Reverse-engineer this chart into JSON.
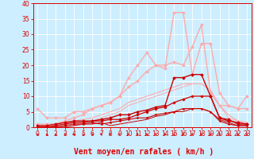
{
  "xlabel": "Vent moyen/en rafales ( km/h )",
  "bg_color": "#cceeff",
  "grid_color": "#ffffff",
  "axis_color": "#dd0000",
  "xlim": [
    -0.5,
    23.5
  ],
  "ylim": [
    0,
    40
  ],
  "yticks": [
    0,
    5,
    10,
    15,
    20,
    25,
    30,
    35,
    40
  ],
  "xticks": [
    0,
    1,
    2,
    3,
    4,
    5,
    6,
    7,
    8,
    9,
    10,
    11,
    12,
    13,
    14,
    15,
    16,
    17,
    18,
    19,
    20,
    21,
    22,
    23
  ],
  "lines": [
    {
      "x": [
        0,
        1,
        2,
        3,
        4,
        5,
        6,
        7,
        8,
        9,
        10,
        11,
        12,
        13,
        14,
        15,
        16,
        17,
        18,
        19,
        20,
        21,
        22,
        23
      ],
      "y": [
        6,
        3,
        3,
        3,
        5,
        5,
        6,
        7,
        8,
        10,
        16,
        20,
        24,
        20,
        19,
        37,
        37,
        17,
        27,
        27,
        11,
        7,
        6,
        10
      ],
      "color": "#ffaaaa",
      "lw": 1.0,
      "marker": "D",
      "ms": 2.0
    },
    {
      "x": [
        0,
        1,
        2,
        3,
        4,
        5,
        6,
        7,
        8,
        9,
        10,
        11,
        12,
        13,
        14,
        15,
        16,
        17,
        18,
        19,
        20,
        21,
        22,
        23
      ],
      "y": [
        1,
        1,
        1,
        2,
        3,
        4,
        6,
        7,
        8,
        10,
        13,
        15,
        18,
        20,
        20,
        21,
        20,
        26,
        33,
        11,
        7,
        7,
        6,
        6
      ],
      "color": "#ffaaaa",
      "lw": 1.0,
      "marker": "D",
      "ms": 2.0
    },
    {
      "x": [
        0,
        1,
        2,
        3,
        4,
        5,
        6,
        7,
        8,
        9,
        10,
        11,
        12,
        13,
        14,
        15,
        16,
        17,
        18,
        19,
        20,
        21,
        22,
        23
      ],
      "y": [
        0,
        0,
        0.5,
        1,
        2,
        2.5,
        3,
        4,
        5,
        6,
        8,
        9,
        10,
        11,
        12,
        13,
        14,
        14,
        14,
        12,
        7,
        4,
        2,
        1.5
      ],
      "color": "#ffaaaa",
      "lw": 0.8,
      "marker": null,
      "ms": 0
    },
    {
      "x": [
        0,
        1,
        2,
        3,
        4,
        5,
        6,
        7,
        8,
        9,
        10,
        11,
        12,
        13,
        14,
        15,
        16,
        17,
        18,
        19,
        20,
        21,
        22,
        23
      ],
      "y": [
        0,
        0,
        0,
        0.5,
        1,
        1.5,
        2,
        3,
        4,
        5,
        7,
        8,
        9,
        10,
        11,
        12,
        13,
        14,
        14,
        12,
        7,
        3,
        2,
        1.5
      ],
      "color": "#ffaaaa",
      "lw": 0.7,
      "marker": null,
      "ms": 0
    },
    {
      "x": [
        0,
        1,
        2,
        3,
        4,
        5,
        6,
        7,
        8,
        9,
        10,
        11,
        12,
        13,
        14,
        15,
        16,
        17,
        18,
        19,
        20,
        21,
        22,
        23
      ],
      "y": [
        0.5,
        0.5,
        1,
        1.5,
        2,
        2,
        2,
        2.5,
        3,
        4,
        4,
        5,
        5.5,
        6.5,
        7,
        16,
        16,
        17,
        17,
        10,
        3,
        2,
        1.5,
        1
      ],
      "color": "#cc0000",
      "lw": 1.0,
      "marker": "D",
      "ms": 2.0
    },
    {
      "x": [
        0,
        1,
        2,
        3,
        4,
        5,
        6,
        7,
        8,
        9,
        10,
        11,
        12,
        13,
        14,
        15,
        16,
        17,
        18,
        19,
        20,
        21,
        22,
        23
      ],
      "y": [
        0,
        0,
        0.5,
        1,
        1.5,
        1.5,
        2,
        2,
        2.5,
        2.5,
        3,
        4,
        5,
        6,
        6.5,
        8,
        9,
        10,
        10,
        10,
        3,
        2.5,
        1,
        1
      ],
      "color": "#cc0000",
      "lw": 0.9,
      "marker": "D",
      "ms": 1.8
    },
    {
      "x": [
        0,
        1,
        2,
        3,
        4,
        5,
        6,
        7,
        8,
        9,
        10,
        11,
        12,
        13,
        14,
        15,
        16,
        17,
        18,
        19,
        20,
        21,
        22,
        23
      ],
      "y": [
        0,
        0,
        0,
        0.5,
        1,
        1,
        1.5,
        1,
        1.5,
        2,
        2.5,
        3,
        3,
        4,
        4.5,
        5,
        6,
        6,
        6,
        5,
        2,
        1,
        0.5,
        0.5
      ],
      "color": "#cc0000",
      "lw": 0.8,
      "marker": "D",
      "ms": 1.5
    },
    {
      "x": [
        0,
        1,
        2,
        3,
        4,
        5,
        6,
        7,
        8,
        9,
        10,
        11,
        12,
        13,
        14,
        15,
        16,
        17,
        18,
        19,
        20,
        21,
        22,
        23
      ],
      "y": [
        0,
        0,
        0,
        0,
        0.5,
        1,
        1,
        1.5,
        0.5,
        1,
        1.5,
        2,
        2.5,
        3.5,
        4,
        5,
        5,
        6,
        6,
        5,
        2.5,
        1.5,
        0.5,
        0.5
      ],
      "color": "#cc0000",
      "lw": 0.7,
      "marker": null,
      "ms": 0
    }
  ],
  "wind_angles": [
    225,
    225,
    225,
    225,
    225,
    225,
    270,
    45,
    90,
    90,
    90,
    45,
    45,
    45,
    45,
    0,
    0,
    0,
    0,
    0,
    0,
    0,
    0,
    0
  ],
  "xlabel_fontsize": 7,
  "tick_fontsize": 5.5
}
